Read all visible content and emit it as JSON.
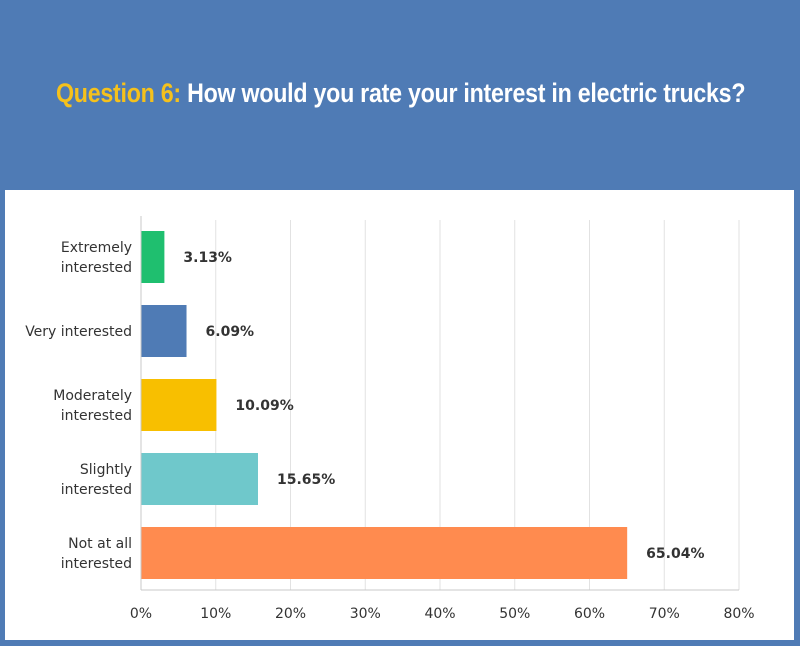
{
  "header": {
    "question_label": "Question 6:",
    "question_text": "How would you rate your interest in electric trucks?"
  },
  "chart_data": {
    "type": "bar",
    "orientation": "horizontal",
    "categories": [
      [
        "Extremely",
        "interested"
      ],
      [
        "Very interested"
      ],
      [
        "Moderately",
        "interested"
      ],
      [
        "Slightly",
        "interested"
      ],
      [
        "Not at all",
        "interested"
      ]
    ],
    "values": [
      3.13,
      6.09,
      10.09,
      15.65,
      65.04
    ],
    "data_labels": [
      "3.13%",
      "6.09%",
      "10.09%",
      "15.65%",
      "65.04%"
    ],
    "colors": [
      "#1fbf6f",
      "#4f7bb5",
      "#f8bf00",
      "#6fc8cb",
      "#ff8b4f"
    ],
    "xlim": [
      0,
      80
    ],
    "xticks": [
      "0%",
      "10%",
      "20%",
      "30%",
      "40%",
      "50%",
      "60%",
      "70%",
      "80%"
    ],
    "grid": true
  }
}
